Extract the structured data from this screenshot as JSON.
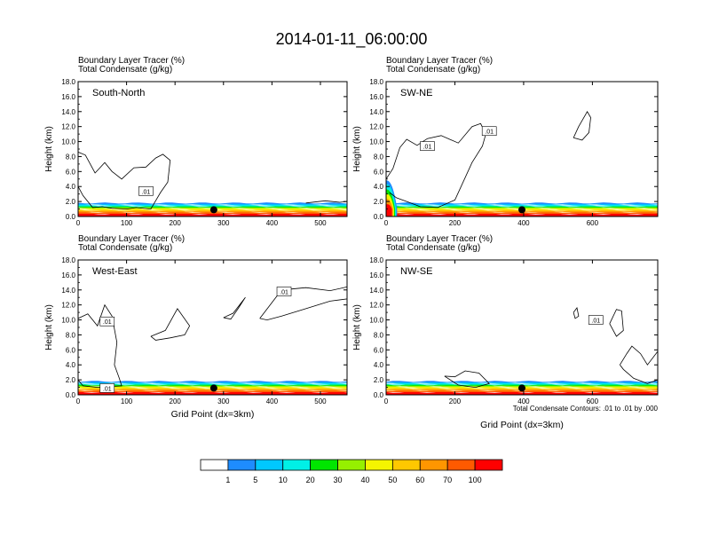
{
  "title": "2014-01-11_06:00:00",
  "chart_data": {
    "type": "heatmap",
    "shared": {
      "field_label": "Boundary Layer Tracer",
      "field_unit": "(%)",
      "contour_label": "Total Condensate",
      "contour_unit": "(g/kg)",
      "ylabel": "Height (km)",
      "ylim": [
        0,
        18
      ],
      "yticks": [
        "0.0",
        "2.0",
        "4.0",
        "6.0",
        "8.0",
        "10.0",
        "12.0",
        "14.0",
        "16.0",
        "18.0"
      ],
      "xlabel": "Grid Point (dx=3km)",
      "contour_note": "Total Condensate Contours: .01 to .01 by .000",
      "contour_value": ".01"
    },
    "panels": [
      {
        "name": "South-North",
        "xlim": [
          0,
          555
        ],
        "xticks": [
          0,
          100,
          200,
          300,
          400,
          500
        ],
        "marker_x": 280,
        "labels": [
          {
            "x": 140,
            "y": 3.4
          }
        ]
      },
      {
        "name": "SW-NE",
        "xlim": [
          0,
          790
        ],
        "xticks": [
          0,
          200,
          400,
          600
        ],
        "marker_x": 395,
        "labels": [
          {
            "x": 120,
            "y": 9.4
          },
          {
            "x": 300,
            "y": 11.4
          }
        ]
      },
      {
        "name": "West-East",
        "xlim": [
          0,
          555
        ],
        "xticks": [
          0,
          100,
          200,
          300,
          400,
          500
        ],
        "marker_x": 280,
        "labels": [
          {
            "x": 60,
            "y": 9.8
          },
          {
            "x": 425,
            "y": 13.8
          },
          {
            "x": 60,
            "y": 0.9
          }
        ]
      },
      {
        "name": "NW-SE",
        "xlim": [
          0,
          790
        ],
        "xticks": [
          0,
          200,
          400,
          600
        ],
        "marker_x": 395,
        "labels": [
          {
            "x": 610,
            "y": 10.0
          }
        ]
      }
    ],
    "colorbar": {
      "levels": [
        "1",
        "5",
        "10",
        "20",
        "30",
        "40",
        "50",
        "60",
        "70",
        "100"
      ],
      "colors": [
        "#ffffff",
        "#1e8cff",
        "#00c8ff",
        "#00f0e6",
        "#00e600",
        "#96f000",
        "#f5f500",
        "#ffc800",
        "#ff9600",
        "#ff5a00",
        "#ff0000"
      ]
    }
  }
}
